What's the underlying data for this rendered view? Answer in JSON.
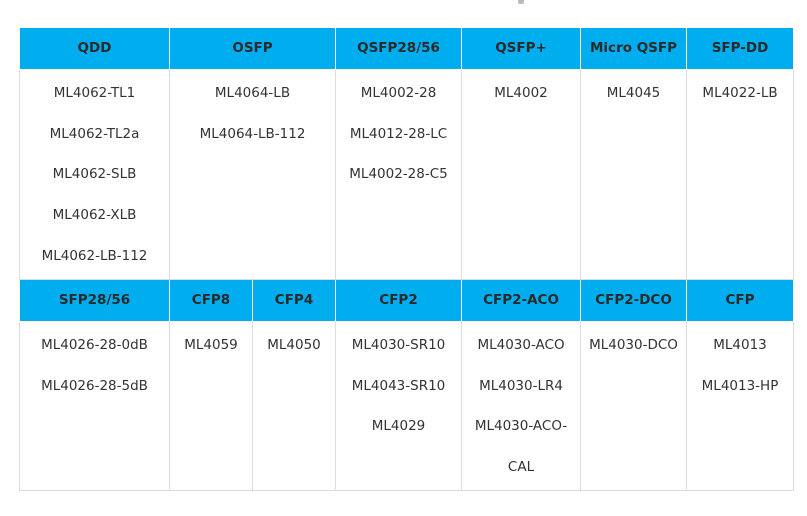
{
  "colors": {
    "header_bg": "#00aeef",
    "header_text": "#2a2a2a",
    "body_text": "#333333",
    "border": "#dddddd"
  },
  "row1": {
    "headers": [
      "QDD",
      "OSFP",
      "QSFP28/56",
      "QSFP+",
      "Micro QSFP",
      "SFP-DD"
    ],
    "cells": [
      [
        "ML4062-TL1",
        "ML4062-TL2a",
        "ML4062-SLB",
        "ML4062-XLB",
        "ML4062-LB-112"
      ],
      [
        "ML4064-LB",
        "ML4064-LB-112"
      ],
      [
        "ML4002-28",
        "ML4012-28-LC",
        "ML4002-28-C5"
      ],
      [
        "ML4002"
      ],
      [
        "ML4045"
      ],
      [
        "ML4022-LB"
      ]
    ]
  },
  "row2": {
    "headers": [
      "SFP28/56",
      "CFP8",
      "CFP4",
      "CFP2",
      "CFP2-ACO",
      "CFP2-DCO",
      "CFP"
    ],
    "cells": [
      [
        "ML4026-28-0dB",
        "ML4026-28-5dB"
      ],
      [
        "ML4059"
      ],
      [
        "ML4050"
      ],
      [
        "ML4030-SR10",
        "ML4043-SR10",
        "ML4029"
      ],
      [
        "ML4030-ACO",
        "ML4030-LR4",
        "ML4030-ACO-",
        "CAL"
      ],
      [
        "ML4030-DCO"
      ],
      [
        "ML4013",
        "ML4013-HP"
      ]
    ]
  }
}
